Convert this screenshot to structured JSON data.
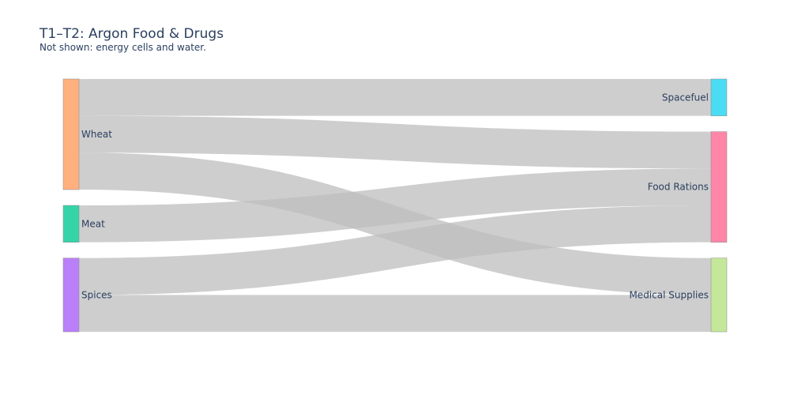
{
  "chart_data": {
    "type": "sankey",
    "title": "T1–T2: Argon Food & Drugs",
    "subtitle": "Not shown: energy cells and water.",
    "nodes": [
      {
        "name": "Wheat",
        "color": "#FFB07C"
      },
      {
        "name": "Meat",
        "color": "#35D4A8"
      },
      {
        "name": "Spices",
        "color": "#BA80FA"
      },
      {
        "name": "Spacefuel",
        "color": "#4ADCF2"
      },
      {
        "name": "Food Rations",
        "color": "#FF86A8"
      },
      {
        "name": "Medical Supplies",
        "color": "#C4E79A"
      }
    ],
    "links": [
      {
        "source": "Wheat",
        "target": "Spacefuel",
        "value": 1
      },
      {
        "source": "Wheat",
        "target": "Food Rations",
        "value": 1
      },
      {
        "source": "Wheat",
        "target": "Medical Supplies",
        "value": 1
      },
      {
        "source": "Meat",
        "target": "Food Rations",
        "value": 1
      },
      {
        "source": "Spices",
        "target": "Food Rations",
        "value": 1
      },
      {
        "source": "Spices",
        "target": "Medical Supplies",
        "value": 1
      }
    ],
    "link_color": "#bdbdbd"
  }
}
